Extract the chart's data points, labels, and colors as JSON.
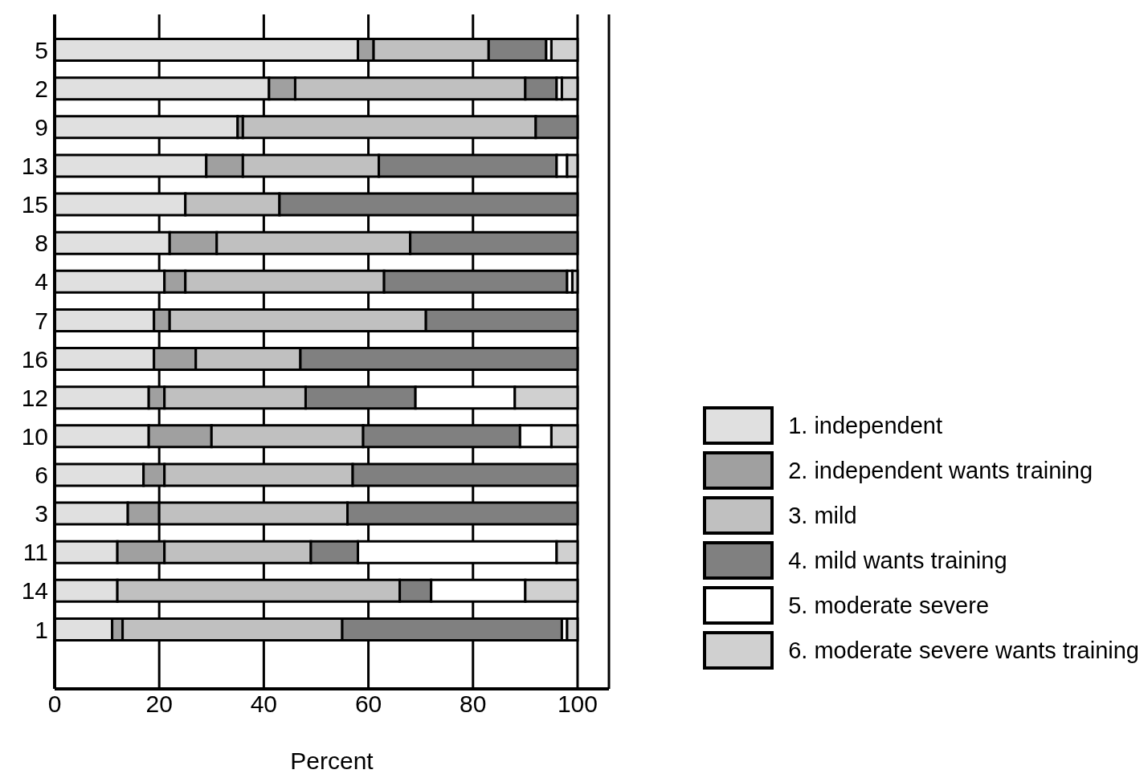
{
  "chart_data": {
    "type": "bar",
    "orientation": "horizontal",
    "stacked": true,
    "xlabel": "Percent",
    "categories": [
      "5",
      "2",
      "9",
      "13",
      "15",
      "8",
      "4",
      "7",
      "16",
      "12",
      "10",
      "6",
      "3",
      "11",
      "14",
      "1"
    ],
    "series": [
      {
        "name": "1. independent",
        "color": "#e0e0e0",
        "values": [
          58,
          41,
          35,
          29,
          25,
          22,
          21,
          19,
          19,
          18,
          18,
          17,
          14,
          12,
          12,
          11
        ]
      },
      {
        "name": "2. independent wants training",
        "color": "#a0a0a0",
        "values": [
          3,
          5,
          1,
          7,
          0,
          9,
          4,
          3,
          8,
          3,
          12,
          4,
          6,
          9,
          0,
          2
        ]
      },
      {
        "name": "3. mild",
        "color": "#c0c0c0",
        "values": [
          22,
          44,
          56,
          26,
          18,
          37,
          38,
          49,
          20,
          27,
          29,
          36,
          36,
          28,
          54,
          42
        ]
      },
      {
        "name": "4. mild wants training",
        "color": "#808080",
        "values": [
          11,
          6,
          8,
          34,
          57,
          32,
          35,
          29,
          53,
          21,
          30,
          43,
          44,
          9,
          6,
          42
        ]
      },
      {
        "name": "5. moderate severe",
        "color": "#ffffff",
        "values": [
          1,
          1,
          0,
          2,
          0,
          0,
          1,
          0,
          0,
          19,
          6,
          0,
          0,
          38,
          18,
          1
        ]
      },
      {
        "name": "6. moderate severe wants training",
        "color": "#d0d0d0",
        "values": [
          5,
          3,
          0,
          2,
          0,
          0,
          1,
          0,
          0,
          12,
          5,
          0,
          0,
          4,
          10,
          2
        ]
      }
    ],
    "xlim": [
      0,
      106
    ],
    "xticks": [
      0,
      20,
      40,
      60,
      80,
      100
    ],
    "grid": "x",
    "legend": "bottom right"
  }
}
